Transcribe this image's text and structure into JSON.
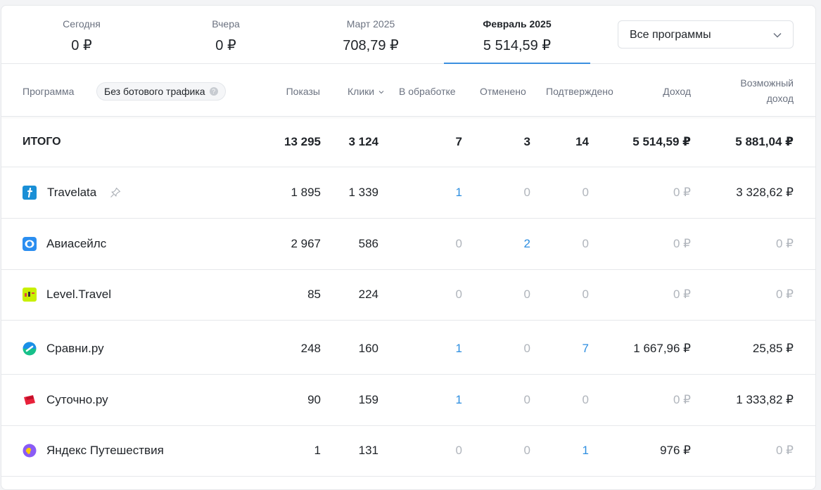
{
  "periods": [
    {
      "label": "Сегодня",
      "value": "0 ₽"
    },
    {
      "label": "Вчера",
      "value": "0 ₽"
    },
    {
      "label": "Март 2025",
      "value": "708,79 ₽"
    },
    {
      "label": "Февраль 2025",
      "value": "5 514,59 ₽"
    }
  ],
  "program_select": {
    "value": "Все программы"
  },
  "columns": {
    "program": "Программа",
    "bot_filter": "Без ботового трафика",
    "bot_filter_help": "?",
    "shows": "Показы",
    "clicks": "Клики",
    "processing": "В обработке",
    "cancelled": "Отменено",
    "confirmed": "Подтверждено",
    "income": "Доход",
    "possible_income_1": "Возможный",
    "possible_income_2": "доход"
  },
  "total": {
    "name": "ИТОГО",
    "shows": "13 295",
    "clicks": "3 124",
    "processing": "7",
    "cancelled": "3",
    "confirmed": "14",
    "income": "5 514,59 ₽",
    "possible": "5 881,04 ₽"
  },
  "rows": [
    {
      "name": "Travelata",
      "logo": "travelata-logo",
      "shows": "1 895",
      "clicks": "1 339",
      "processing": "1",
      "cancelled": "0",
      "confirmed": "0",
      "income": "0 ₽",
      "possible": "3 328,62 ₽"
    },
    {
      "name": "Авиасейлс",
      "logo": "aviasales-logo",
      "shows": "2 967",
      "clicks": "586",
      "processing": "0",
      "cancelled": "2",
      "confirmed": "0",
      "income": "0 ₽",
      "possible": "0 ₽"
    },
    {
      "name": "Level.Travel",
      "logo": "level-travel-logo",
      "shows": "85",
      "clicks": "224",
      "processing": "0",
      "cancelled": "0",
      "confirmed": "0",
      "income": "0 ₽",
      "possible": "0 ₽"
    },
    {
      "name": "Сравни.ру",
      "logo": "sravni-logo",
      "shows": "248",
      "clicks": "160",
      "processing": "1",
      "cancelled": "0",
      "confirmed": "7",
      "income": "1 667,96 ₽",
      "possible": "25,85 ₽"
    },
    {
      "name": "Суточно.ру",
      "logo": "sutochno-logo",
      "shows": "90",
      "clicks": "159",
      "processing": "1",
      "cancelled": "0",
      "confirmed": "0",
      "income": "0 ₽",
      "possible": "1 333,82 ₽"
    },
    {
      "name": "Яндекс Путешествия",
      "logo": "yandex-travel-logo",
      "shows": "1",
      "clicks": "131",
      "processing": "0",
      "cancelled": "0",
      "confirmed": "1",
      "income": "976 ₽",
      "possible": "0 ₽"
    }
  ],
  "colors": {
    "accent": "#2d8ee0",
    "muted": "#b0b5bc",
    "border": "#e6e8eb"
  }
}
